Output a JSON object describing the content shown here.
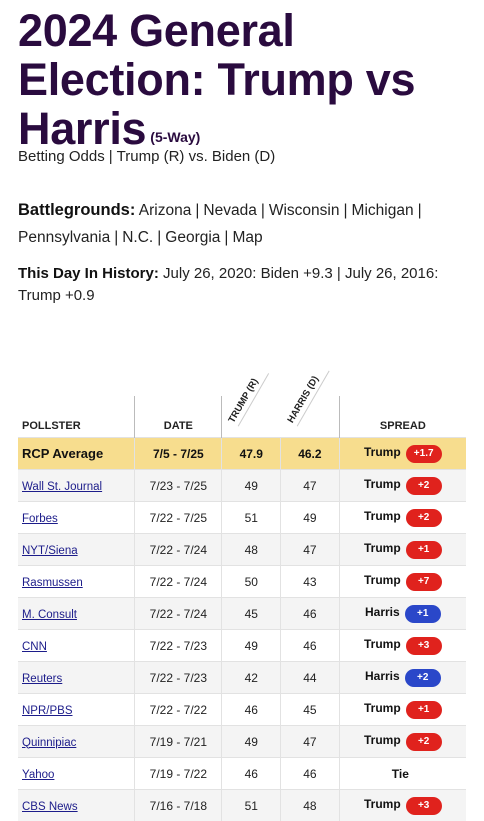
{
  "header": {
    "title": "2024 General Election: Trump vs Harris",
    "way": "(5-Way)",
    "subtitle_links": [
      "Betting Odds",
      "Trump (R) vs. Biden (D)"
    ]
  },
  "battlegrounds": {
    "label": "Battlegrounds:",
    "links": [
      "Arizona",
      "Nevada",
      "Wisconsin",
      "Michigan",
      "Pennsylvania",
      "N.C.",
      "Georgia",
      "Map"
    ]
  },
  "history": {
    "label": "This Day In History:",
    "text": "July 26, 2020: Biden +9.3 | July 26, 2016: Trump +0.9"
  },
  "table": {
    "headers": {
      "pollster": "POLLSTER",
      "date": "DATE",
      "trump": "TRUMP (R)",
      "harris": "HARRIS (D)",
      "spread": "SPREAD"
    },
    "average": {
      "pollster": "RCP Average",
      "date": "7/5 - 7/25",
      "trump": "47.9",
      "harris": "46.2",
      "winner": "Trump",
      "margin": "+1.7"
    },
    "rows": [
      {
        "pollster": "Wall St. Journal",
        "date": "7/23 - 7/25",
        "trump": "49",
        "harris": "47",
        "winner": "Trump",
        "margin": "+2"
      },
      {
        "pollster": "Forbes",
        "date": "7/22 - 7/25",
        "trump": "51",
        "harris": "49",
        "winner": "Trump",
        "margin": "+2"
      },
      {
        "pollster": "NYT/Siena",
        "date": "7/22 - 7/24",
        "trump": "48",
        "harris": "47",
        "winner": "Trump",
        "margin": "+1"
      },
      {
        "pollster": "Rasmussen",
        "date": "7/22 - 7/24",
        "trump": "50",
        "harris": "43",
        "winner": "Trump",
        "margin": "+7"
      },
      {
        "pollster": "M. Consult",
        "date": "7/22 - 7/24",
        "trump": "45",
        "harris": "46",
        "winner": "Harris",
        "margin": "+1"
      },
      {
        "pollster": "CNN",
        "date": "7/22 - 7/23",
        "trump": "49",
        "harris": "46",
        "winner": "Trump",
        "margin": "+3"
      },
      {
        "pollster": "Reuters",
        "date": "7/22 - 7/23",
        "trump": "42",
        "harris": "44",
        "winner": "Harris",
        "margin": "+2"
      },
      {
        "pollster": "NPR/PBS",
        "date": "7/22 - 7/22",
        "trump": "46",
        "harris": "45",
        "winner": "Trump",
        "margin": "+1"
      },
      {
        "pollster": "Quinnipiac",
        "date": "7/19 - 7/21",
        "trump": "49",
        "harris": "47",
        "winner": "Trump",
        "margin": "+2"
      },
      {
        "pollster": "Yahoo",
        "date": "7/19 - 7/22",
        "trump": "46",
        "harris": "46",
        "winner": "Tie",
        "margin": ""
      },
      {
        "pollster": "CBS News",
        "date": "7/16 - 7/18",
        "trump": "51",
        "harris": "48",
        "winner": "Trump",
        "margin": "+3"
      }
    ]
  },
  "colors": {
    "trump": "#e0221d",
    "harris": "#2a47c9",
    "average_bg": "#f7dd8e",
    "title": "#2a0b3f"
  }
}
